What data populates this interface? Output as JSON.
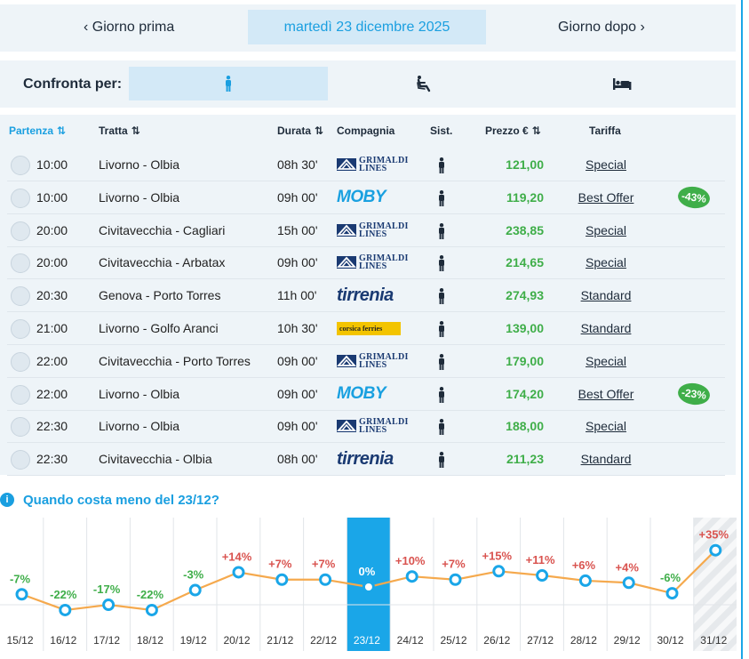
{
  "date_nav": {
    "prev_label": "Giorno prima",
    "current_date": "martedì 23 dicembre 2025",
    "next_label": "Giorno dopo"
  },
  "compare": {
    "label": "Confronta per:",
    "options": [
      {
        "icon": "person-standing-icon",
        "active": true
      },
      {
        "icon": "reclining-seat-icon",
        "active": false
      },
      {
        "icon": "bed-icon",
        "active": false
      }
    ]
  },
  "table": {
    "headers": {
      "departure": "Partenza",
      "route": "Tratta",
      "duration": "Durata",
      "company": "Compagnia",
      "accommodation": "Sist.",
      "price": "Prezzo €",
      "fare": "Tariffa"
    },
    "rows": [
      {
        "time": "10:00",
        "route": "Livorno - Olbia",
        "duration": "08h 30'",
        "company": "grimaldi",
        "price": "121,00",
        "fare": "Special",
        "discount": ""
      },
      {
        "time": "10:00",
        "route": "Livorno - Olbia",
        "duration": "09h 00'",
        "company": "moby",
        "price": "119,20",
        "fare": "Best Offer",
        "discount": "-43%"
      },
      {
        "time": "20:00",
        "route": "Civitavecchia - Cagliari",
        "duration": "15h 00'",
        "company": "grimaldi",
        "price": "238,85",
        "fare": "Special",
        "discount": ""
      },
      {
        "time": "20:00",
        "route": "Civitavecchia - Arbatax",
        "duration": "09h 00'",
        "company": "grimaldi",
        "price": "214,65",
        "fare": "Special",
        "discount": ""
      },
      {
        "time": "20:30",
        "route": "Genova - Porto Torres",
        "duration": "11h 00'",
        "company": "tirrenia",
        "price": "274,93",
        "fare": "Standard",
        "discount": ""
      },
      {
        "time": "21:00",
        "route": "Livorno - Golfo Aranci",
        "duration": "10h 30'",
        "company": "corsica",
        "price": "139,00",
        "fare": "Standard",
        "discount": ""
      },
      {
        "time": "22:00",
        "route": "Civitavecchia - Porto Torres",
        "duration": "09h 00'",
        "company": "grimaldi",
        "price": "179,00",
        "fare": "Special",
        "discount": ""
      },
      {
        "time": "22:00",
        "route": "Livorno - Olbia",
        "duration": "09h 00'",
        "company": "moby",
        "price": "174,20",
        "fare": "Best Offer",
        "discount": "-23%"
      },
      {
        "time": "22:30",
        "route": "Livorno - Olbia",
        "duration": "09h 00'",
        "company": "grimaldi",
        "price": "188,00",
        "fare": "Special",
        "discount": ""
      },
      {
        "time": "22:30",
        "route": "Civitavecchia - Olbia",
        "duration": "08h 00'",
        "company": "tirrenia",
        "price": "211,23",
        "fare": "Standard",
        "discount": ""
      }
    ]
  },
  "logos": {
    "grimaldi": "GRIMALDI LINES",
    "moby": "MOBY",
    "tirrenia": "tirrenia",
    "corsica": "corsica ferries"
  },
  "calendar": {
    "title": "Quando costa meno del 23/12?",
    "colors": {
      "accent": "#1aa6e8",
      "line": "#f5a94d",
      "positive": "#d9534f",
      "negative": "#3fae49"
    }
  },
  "chart_data": {
    "type": "line",
    "categories": [
      "15/12",
      "16/12",
      "17/12",
      "18/12",
      "19/12",
      "20/12",
      "21/12",
      "22/12",
      "23/12",
      "24/12",
      "25/12",
      "26/12",
      "27/12",
      "28/12",
      "29/12",
      "30/12",
      "31/12"
    ],
    "values": [
      -7,
      -22,
      -17,
      -22,
      -3,
      14,
      7,
      7,
      0,
      10,
      7,
      15,
      11,
      6,
      4,
      -6,
      35
    ],
    "labels": [
      "-7%",
      "-22%",
      "-17%",
      "-22%",
      "-3%",
      "+14%",
      "+7%",
      "+7%",
      "0%",
      "+10%",
      "+7%",
      "+15%",
      "+11%",
      "+6%",
      "+4%",
      "-6%",
      "+35%"
    ],
    "selected_index": 8,
    "hatched_index": 16,
    "ylabel": "",
    "xlabel": ""
  }
}
